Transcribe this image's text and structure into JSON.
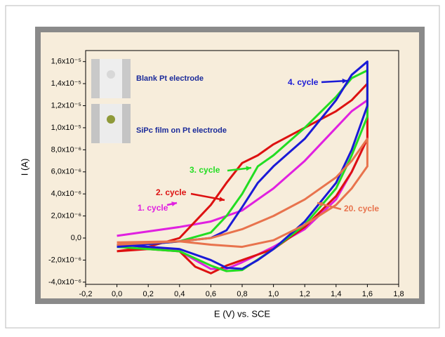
{
  "chart_data": {
    "type": "line",
    "xlabel": "E (V) vs. SCE",
    "ylabel": "I (A)",
    "xlim": [
      -0.2,
      1.8
    ],
    "ylim": [
      -4.2e-06,
      1.7e-05
    ],
    "xticks": [
      {
        "value": -0.2,
        "label": "-0,2"
      },
      {
        "value": 0,
        "label": "0,0"
      },
      {
        "value": 0.2,
        "label": "0,2"
      },
      {
        "value": 0.4,
        "label": "0,4"
      },
      {
        "value": 0.6,
        "label": "0,6"
      },
      {
        "value": 0.8,
        "label": "0,8"
      },
      {
        "value": 1.0,
        "label": "1,0"
      },
      {
        "value": 1.2,
        "label": "1,2"
      },
      {
        "value": 1.4,
        "label": "1,4"
      },
      {
        "value": 1.6,
        "label": "1,6"
      },
      {
        "value": 1.8,
        "label": "1,8"
      }
    ],
    "yticks": [
      {
        "value": -4e-06,
        "label": "-4,0x10⁻⁶"
      },
      {
        "value": -2e-06,
        "label": "-2,0x10⁻⁶"
      },
      {
        "value": 0,
        "label": "0,0"
      },
      {
        "value": 2e-06,
        "label": "2,0x10⁻⁶"
      },
      {
        "value": 4e-06,
        "label": "4,0x10⁻⁶"
      },
      {
        "value": 6e-06,
        "label": "6,0x10⁻⁶"
      },
      {
        "value": 8e-06,
        "label": "8,0x10⁻⁶"
      },
      {
        "value": 1e-05,
        "label": "1,0x10⁻⁵"
      },
      {
        "value": 1.2e-05,
        "label": "1,2x10⁻⁵"
      },
      {
        "value": 1.4e-05,
        "label": "1,4x10⁻⁵"
      },
      {
        "value": 1.6e-05,
        "label": "1,6x10⁻⁵"
      }
    ],
    "inset_labels": [
      "Blank Pt electrode",
      "SiPc film on Pt electrode"
    ],
    "series": [
      {
        "name": "1. cycle",
        "color": "#e020e0",
        "x": [
          0,
          0.2,
          0.4,
          0.6,
          0.8,
          1.0,
          1.2,
          1.4,
          1.5,
          1.6,
          1.6,
          1.5,
          1.4,
          1.2,
          1.0,
          0.8,
          0.7,
          0.6,
          0.5,
          0.4,
          0.2,
          0
        ],
        "values": [
          2e-07,
          6e-07,
          1e-06,
          1.5e-06,
          2.5e-06,
          4.5e-06,
          7e-06,
          1e-05,
          1.15e-05,
          1.25e-05,
          9e-06,
          6e-06,
          3.5e-06,
          8e-07,
          -8e-07,
          -2.2e-06,
          -2.8e-06,
          -2.8e-06,
          -2e-06,
          -1.2e-06,
          -8e-07,
          -6e-07
        ]
      },
      {
        "name": "2. cycle",
        "color": "#dd1111",
        "x": [
          0,
          0.2,
          0.4,
          0.5,
          0.6,
          0.7,
          0.8,
          0.9,
          1.0,
          1.2,
          1.4,
          1.5,
          1.6,
          1.6,
          1.5,
          1.4,
          1.2,
          1.0,
          0.8,
          0.7,
          0.6,
          0.5,
          0.4,
          0.2,
          0
        ],
        "values": [
          -1.2e-06,
          -8e-07,
          0,
          1.5e-06,
          3e-06,
          5e-06,
          6.8e-06,
          7.5e-06,
          8.5e-06,
          1e-05,
          1.15e-05,
          1.25e-05,
          1.4e-05,
          9e-06,
          6e-06,
          3.8e-06,
          1e-06,
          -1e-06,
          -2e-06,
          -2.5e-06,
          -3.2e-06,
          -2.6e-06,
          -1.2e-06,
          -1e-06,
          -1.2e-06
        ]
      },
      {
        "name": "3. cycle",
        "color": "#22dd22",
        "x": [
          0,
          0.4,
          0.6,
          0.7,
          0.8,
          0.9,
          1.0,
          1.2,
          1.4,
          1.5,
          1.6,
          1.6,
          1.5,
          1.4,
          1.2,
          1.0,
          0.8,
          0.7,
          0.6,
          0.4,
          0
        ],
        "values": [
          -8e-07,
          -3e-07,
          5e-07,
          2e-06,
          4e-06,
          6.5e-06,
          7.5e-06,
          1e-05,
          1.28e-05,
          1.45e-05,
          1.52e-05,
          1.1e-05,
          7.5e-06,
          4.5e-06,
          1.2e-06,
          -1e-06,
          -2.9e-06,
          -3e-06,
          -2.5e-06,
          -1.2e-06,
          -8e-07
        ]
      },
      {
        "name": "4. cycle",
        "color": "#1a1ad6",
        "x": [
          0,
          0.4,
          0.6,
          0.7,
          0.8,
          0.9,
          1.0,
          1.2,
          1.4,
          1.5,
          1.6,
          1.6,
          1.5,
          1.4,
          1.2,
          1.0,
          0.9,
          0.8,
          0.7,
          0.6,
          0.4,
          0
        ],
        "values": [
          -8e-07,
          -3e-07,
          0,
          7e-07,
          2.8e-06,
          5e-06,
          6.5e-06,
          9e-06,
          1.25e-05,
          1.48e-05,
          1.6e-05,
          1.2e-05,
          8e-06,
          5e-06,
          1.5e-06,
          -1e-06,
          -2e-06,
          -2.8e-06,
          -2.7e-06,
          -2e-06,
          -1e-06,
          -6e-07
        ]
      },
      {
        "name": "20. cycle",
        "color": "#e8734d",
        "x": [
          0,
          0.4,
          0.6,
          0.8,
          1.0,
          1.2,
          1.4,
          1.5,
          1.6,
          1.6,
          1.5,
          1.4,
          1.2,
          1.0,
          0.8,
          0.6,
          0.4,
          0
        ],
        "values": [
          -6e-07,
          -3e-07,
          0,
          8e-07,
          2e-06,
          3.5e-06,
          5.5e-06,
          7e-06,
          9e-06,
          6.5e-06,
          4.5e-06,
          3e-06,
          1.2e-06,
          -2e-07,
          -8e-07,
          -6e-07,
          -3e-07,
          -4e-07
        ]
      }
    ]
  }
}
